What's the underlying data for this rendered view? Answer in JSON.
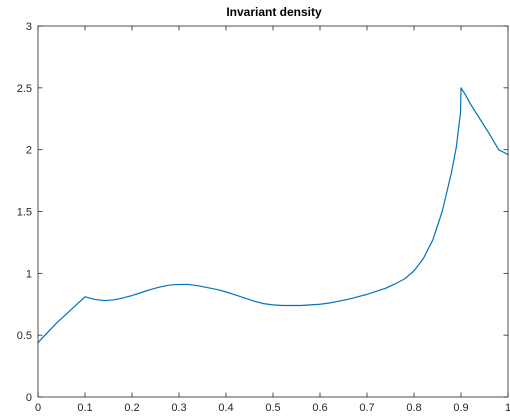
{
  "chart_data": {
    "type": "line",
    "title": "Invariant density",
    "xlabel": "",
    "ylabel": "",
    "xlim": [
      0,
      1
    ],
    "ylim": [
      0,
      3
    ],
    "xticks": [
      0,
      0.1,
      0.2,
      0.3,
      0.4,
      0.5,
      0.6,
      0.7,
      0.8,
      0.9,
      1
    ],
    "xtick_labels": [
      "0",
      "0.1",
      "0.2",
      "0.3",
      "0.4",
      "0.5",
      "0.6",
      "0.7",
      "0.8",
      "0.9",
      "1"
    ],
    "yticks": [
      0,
      0.5,
      1,
      1.5,
      2,
      2.5,
      3
    ],
    "ytick_labels": [
      "0",
      "0.5",
      "1",
      "1.5",
      "2",
      "2.5",
      "3"
    ],
    "grid": false,
    "series": [
      {
        "color": "#0072bd",
        "x": [
          0,
          0.02,
          0.04,
          0.06,
          0.08,
          0.1,
          0.12,
          0.14,
          0.16,
          0.18,
          0.2,
          0.22,
          0.24,
          0.26,
          0.28,
          0.3,
          0.32,
          0.34,
          0.36,
          0.38,
          0.4,
          0.42,
          0.44,
          0.46,
          0.48,
          0.5,
          0.52,
          0.54,
          0.56,
          0.58,
          0.6,
          0.62,
          0.64,
          0.66,
          0.68,
          0.7,
          0.72,
          0.74,
          0.76,
          0.78,
          0.8,
          0.82,
          0.84,
          0.86,
          0.87,
          0.88,
          0.89,
          0.899,
          0.9,
          0.91,
          0.92,
          0.94,
          0.96,
          0.98,
          1.0
        ],
        "y": [
          0.44,
          0.52,
          0.6,
          0.67,
          0.74,
          0.81,
          0.79,
          0.78,
          0.785,
          0.8,
          0.82,
          0.845,
          0.87,
          0.89,
          0.905,
          0.91,
          0.91,
          0.9,
          0.885,
          0.87,
          0.85,
          0.825,
          0.8,
          0.775,
          0.755,
          0.745,
          0.74,
          0.74,
          0.74,
          0.745,
          0.75,
          0.76,
          0.775,
          0.79,
          0.81,
          0.83,
          0.855,
          0.88,
          0.915,
          0.955,
          1.02,
          1.12,
          1.27,
          1.5,
          1.66,
          1.82,
          2.02,
          2.3,
          2.5,
          2.44,
          2.37,
          2.25,
          2.13,
          2.0,
          1.96
        ]
      }
    ]
  }
}
